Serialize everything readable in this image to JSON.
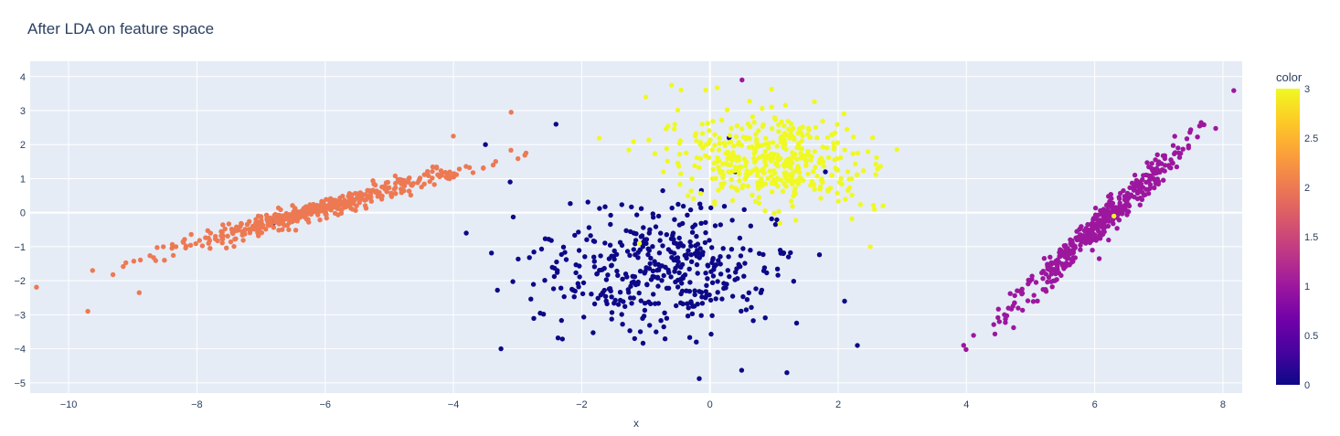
{
  "chart_data": {
    "type": "scatter",
    "title": "After LDA on feature space",
    "xlabel": "x",
    "ylabel": "",
    "xlim": [
      -10.6,
      8.3
    ],
    "ylim": [
      -5.3,
      4.45
    ],
    "x_ticks": [
      -10,
      -8,
      -6,
      -4,
      -2,
      0,
      2,
      4,
      6,
      8
    ],
    "y_ticks": [
      -5,
      -4,
      -3,
      -2,
      -1,
      0,
      1,
      2,
      3,
      4
    ],
    "x_tick_labels": [
      "−10",
      "−8",
      "−6",
      "−4",
      "−2",
      "0",
      "2",
      "4",
      "6",
      "8"
    ],
    "y_tick_labels": [
      "−5",
      "−4",
      "−3",
      "−2",
      "−1",
      "0",
      "1",
      "2",
      "3",
      "4"
    ],
    "grid": true,
    "legend": {
      "type": "colorbar",
      "title": "color",
      "range": [
        0,
        3
      ],
      "ticks": [
        0,
        0.5,
        1,
        1.5,
        2,
        2.5,
        3
      ],
      "tick_labels": [
        "0",
        "0.5",
        "1",
        "1.5",
        "2",
        "2.5",
        "3"
      ],
      "placement": "right",
      "colorscale": [
        "#0d0887",
        "#46039f",
        "#7201a8",
        "#9c179e",
        "#bd3786",
        "#d8576b",
        "#ed7953",
        "#fb9f3a",
        "#fdca26",
        "#f0f921"
      ]
    },
    "groups": [
      {
        "color_value": 0,
        "color": "#0d0887",
        "center": [
          -0.8,
          -1.7
        ],
        "spread": [
          0.95,
          0.95
        ],
        "rotation_deg": -30,
        "count": 420,
        "extra_points": [
          [
            -3.5,
            2.0
          ],
          [
            -2.4,
            2.6
          ],
          [
            -3.8,
            -0.6
          ],
          [
            1.2,
            -4.7
          ],
          [
            2.3,
            -3.9
          ],
          [
            2.1,
            -2.6
          ],
          [
            -0.8,
            -0.1
          ],
          [
            0.3,
            2.2
          ],
          [
            1.8,
            1.2
          ],
          [
            -6.8,
            -0.3
          ]
        ]
      },
      {
        "color_value": 1,
        "color": "#9c179e",
        "center": [
          6.05,
          -0.4
        ],
        "direction": [
          1.0,
          1.79
        ],
        "length": 2.6,
        "width": 0.12,
        "count": 430,
        "extra_points": [
          [
            0.5,
            3.9
          ],
          [
            4.75,
            -2.65
          ],
          [
            7.3,
            1.9
          ]
        ]
      },
      {
        "color_value": 2,
        "color": "#ed7953",
        "center": [
          -6.1,
          0.1
        ],
        "direction": [
          1.0,
          0.525
        ],
        "length": 2.4,
        "width": 0.12,
        "count": 460,
        "extra_points": [
          [
            -9.7,
            -2.9
          ],
          [
            -8.9,
            -2.35
          ],
          [
            -3.1,
            2.95
          ],
          [
            -4.0,
            2.25
          ],
          [
            1.2,
            1.5
          ]
        ]
      },
      {
        "color_value": 3,
        "color": "#f0f921",
        "center": [
          0.9,
          1.6
        ],
        "spread": [
          0.75,
          0.68
        ],
        "rotation_deg": -35,
        "count": 430,
        "extra_points": [
          [
            -1.0,
            3.4
          ],
          [
            -0.6,
            3.75
          ],
          [
            2.5,
            -1.0
          ],
          [
            2.7,
            0.2
          ],
          [
            -1.1,
            -0.9
          ],
          [
            6.3,
            -0.1
          ]
        ]
      }
    ]
  }
}
